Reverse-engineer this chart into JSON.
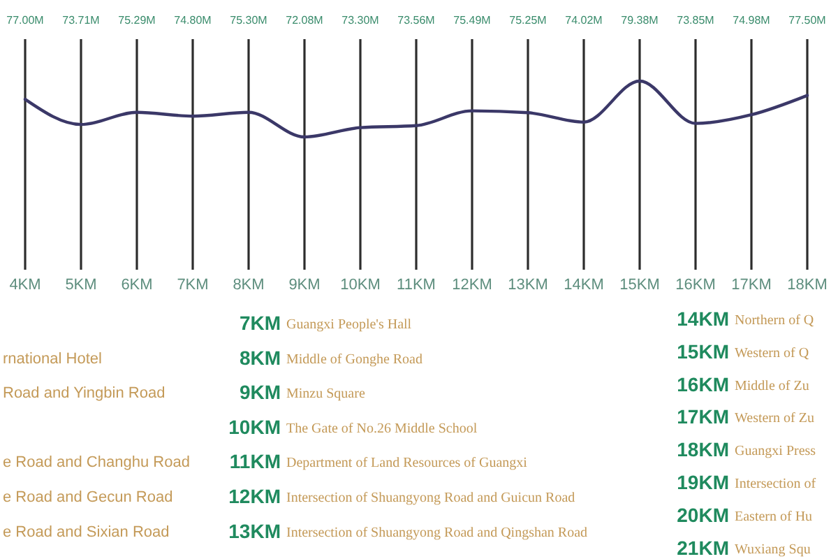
{
  "chart_data": {
    "type": "line",
    "categories": [
      "4KM",
      "5KM",
      "6KM",
      "7KM",
      "8KM",
      "9KM",
      "10KM",
      "11KM",
      "12KM",
      "13KM",
      "14KM",
      "15KM",
      "16KM",
      "17KM",
      "18KM"
    ],
    "values": [
      77.0,
      73.71,
      75.29,
      74.8,
      75.3,
      72.08,
      73.3,
      73.56,
      75.49,
      75.25,
      74.02,
      79.38,
      73.85,
      74.98,
      77.5
    ],
    "value_labels": [
      "77.00M",
      "73.71M",
      "75.29M",
      "74.80M",
      "75.30M",
      "72.08M",
      "73.30M",
      "73.56M",
      "75.49M",
      "75.25M",
      "74.02M",
      "79.38M",
      "73.85M",
      "74.98M",
      "77.50M"
    ],
    "color": "#3b3868",
    "grid": "x",
    "annotations": [
      "rnational Hotel",
      "Road and Yingbin Road",
      "e Road and Changhu Road",
      "e Road and Gecun Road",
      "e Road and Sixian Road",
      "7KM",
      "Guangxi People's Hall",
      "8KM",
      "Middle of Gonghe Road",
      "9KM",
      "Minzu Square",
      "10KM",
      "The Gate of No.26 Middle School",
      "11KM",
      "Department of Land Resources of Guangxi",
      "12KM",
      "Intersection of Shuangyong Road and Guicun Road",
      "13KM",
      "Intersection of Shuangyong Road and Qingshan Road",
      "14KM",
      "Northern of Q",
      "15KM",
      "Western of Q",
      "16KM",
      "Middle of Zu",
      "17KM",
      "Western of Zu",
      "18KM",
      "Guangxi Press",
      "19KM",
      "Intersection of",
      "20KM",
      "Eastern of Hu",
      "21KM",
      "Wuxiang Squ"
    ]
  }
}
